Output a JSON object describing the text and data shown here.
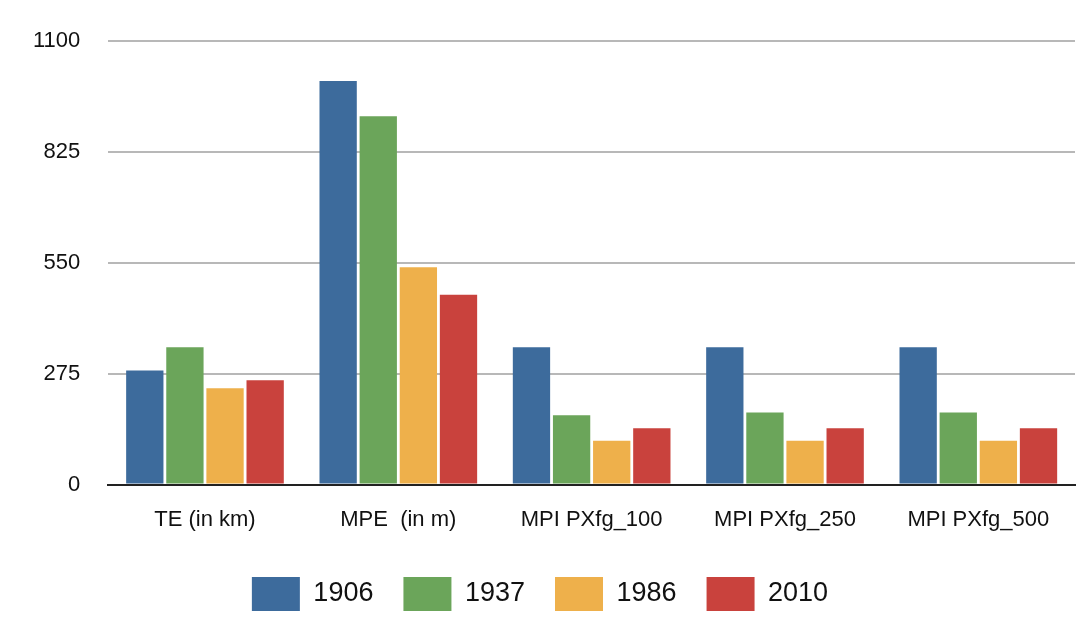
{
  "chart_data": {
    "type": "bar",
    "categories": [
      "TE (in km)",
      "MPE  (in m)",
      "MPI PXfg_100",
      "MPI PXfg_250",
      "MPI PXfg_500"
    ],
    "series": [
      {
        "name": "1906",
        "color": "#3d6b9c",
        "values": [
          283,
          1001,
          341,
          341,
          341
        ]
      },
      {
        "name": "1937",
        "color": "#6ba55a",
        "values": [
          341,
          914,
          172,
          179,
          179
        ]
      },
      {
        "name": "1986",
        "color": "#eeb04b",
        "values": [
          239,
          539,
          109,
          109,
          109
        ]
      },
      {
        "name": "2010",
        "color": "#c9423d",
        "values": [
          259,
          471,
          140,
          140,
          140
        ]
      }
    ],
    "ylim": [
      0,
      1100
    ],
    "yticks": [
      0,
      275,
      550,
      825,
      1100
    ],
    "grid": "y",
    "legend": "bottom"
  }
}
